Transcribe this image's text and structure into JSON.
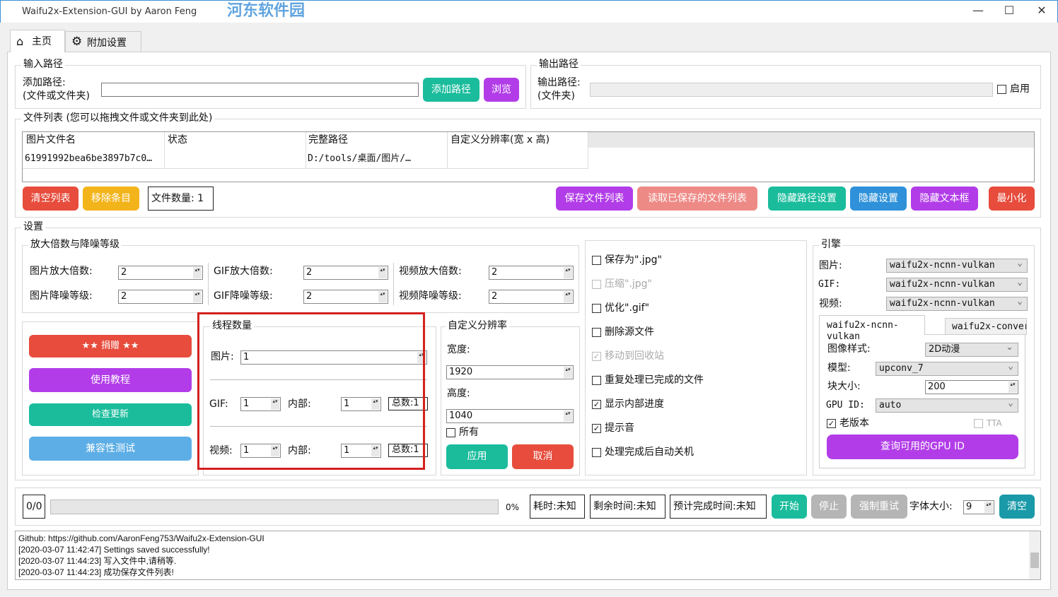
{
  "window": {
    "title": "Waifu2x-Extension-GUI by Aaron Feng",
    "minimize": "—",
    "maximize": "☐",
    "close": "✕"
  },
  "watermark": {
    "text": "河东软件园",
    "url": "www.pc0359.cn"
  },
  "tabs": [
    {
      "label": "主页",
      "icon": "home-icon"
    },
    {
      "label": "附加设置",
      "icon": "gear-icon"
    }
  ],
  "input_path": {
    "legend": "输入路径",
    "label1": "添加路径:",
    "label2": "(文件或文件夹)",
    "value": "",
    "add_button": "添加路径",
    "browse_button": "浏览"
  },
  "output_path": {
    "legend": "输出路径",
    "label1": "输出路径:",
    "label2": "(文件夹)",
    "value": "",
    "enable_label": "启用",
    "enabled": false
  },
  "file_list": {
    "legend": "文件列表 (您可以拖拽文件或文件夹到此处)",
    "columns": [
      "图片文件名",
      "状态",
      "完整路径",
      "自定义分辨率(宽 x 高)"
    ],
    "rows": [
      [
        "61991992bea6be3897b7c0…",
        "",
        "D:/tools/桌面/图片/…",
        ""
      ]
    ]
  },
  "list_buttons": {
    "clear": "清空列表",
    "remove": "移除条目",
    "count": "文件数量: 1",
    "save": "保存文件列表",
    "load": "读取已保存的文件列表",
    "hide_path": "隐藏路径设置",
    "hide_settings": "隐藏设置",
    "hide_text": "隐藏文本框",
    "minimize": "最小化"
  },
  "settings": {
    "legend": "设置",
    "scale": {
      "legend": "放大倍数与降噪等级",
      "img_scale_label": "图片放大倍数:",
      "img_scale": "2",
      "gif_scale_label": "GIF放大倍数:",
      "gif_scale": "2",
      "vid_scale_label": "视频放大倍数:",
      "vid_scale": "2",
      "img_noise_label": "图片降噪等级:",
      "img_noise": "2",
      "gif_noise_label": "GIF降噪等级:",
      "gif_noise": "2",
      "vid_noise_label": "视频降噪等级:",
      "vid_noise": "2"
    },
    "side_buttons": {
      "donate": "★★ 捐赠 ★★",
      "tutorial": "使用教程",
      "update": "检查更新",
      "compat": "兼容性测试"
    },
    "threads": {
      "legend": "线程数量",
      "img_label": "图片:",
      "img": "1",
      "gif_label": "GIF:",
      "gif": "1",
      "inner_label": "内部:",
      "gif_inner": "1",
      "gif_total": "总数:1",
      "vid_label": "视频:",
      "vid": "1",
      "vid_inner": "1",
      "vid_total": "总数:1"
    },
    "custom_res": {
      "legend": "自定义分辨率",
      "width_label": "宽度:",
      "width": "1920",
      "height_label": "高度:",
      "height": "1040",
      "all_label": "所有",
      "apply": "应用",
      "cancel": "取消"
    },
    "options": [
      {
        "label": "保存为\".jpg\"",
        "checked": false,
        "disabled": false
      },
      {
        "label": "压缩\".jpg\"",
        "checked": false,
        "disabled": true
      },
      {
        "label": "优化\".gif\"",
        "checked": false,
        "disabled": false
      },
      {
        "label": "删除源文件",
        "checked": false,
        "disabled": false
      },
      {
        "label": "移动到回收站",
        "checked": true,
        "disabled": true
      },
      {
        "label": "重复处理已完成的文件",
        "checked": false,
        "disabled": false
      },
      {
        "label": "显示内部进度",
        "checked": true,
        "disabled": false
      },
      {
        "label": "提示音",
        "checked": true,
        "disabled": false
      },
      {
        "label": "处理完成后自动关机",
        "checked": false,
        "disabled": false
      }
    ],
    "engine": {
      "legend": "引擎",
      "img_label": "图片:",
      "img": "waifu2x-ncnn-vulkan",
      "gif_label": "GIF:",
      "gif": "waifu2x-ncnn-vulkan",
      "vid_label": "视频:",
      "vid": "waifu2x-ncnn-vulkan",
      "tabs": [
        "waifu2x-ncnn-vulkan",
        "waifu2x-conver"
      ],
      "style_label": "图像样式:",
      "style": "2D动漫",
      "model_label": "模型:",
      "model": "upconv_7",
      "tile_label": "块大小:",
      "tile": "200",
      "gpu_label": "GPU ID:",
      "gpu": "auto",
      "old_label": "老版本",
      "old": true,
      "tta_label": "TTA",
      "tta": false,
      "query_gpu": "查询可用的GPU ID"
    }
  },
  "progress": {
    "count": "0/0",
    "percent_value": 0,
    "percent": "0%",
    "elapsed": "耗时:未知",
    "remaining": "剩余时间:未知",
    "eta": "预计完成时间:未知",
    "start": "开始",
    "stop": "停止",
    "retry": "强制重试",
    "font_label": "字体大小:",
    "font_size": "9",
    "clear": "清空"
  },
  "log": [
    "Github: https://github.com/AaronFeng753/Waifu2x-Extension-GUI",
    "[2020-03-07 11:42:47] Settings saved successfully!",
    "[2020-03-07 11:44:23] 写入文件中,请稍等.",
    "[2020-03-07 11:44:23] 成功保存文件列表!"
  ],
  "colors": {
    "teal": "#1abc9c",
    "purple": "#b23de8",
    "red": "#e74c3c",
    "orange": "#f3b41b",
    "blue": "#2e91d9",
    "highlight": "#d42020"
  }
}
